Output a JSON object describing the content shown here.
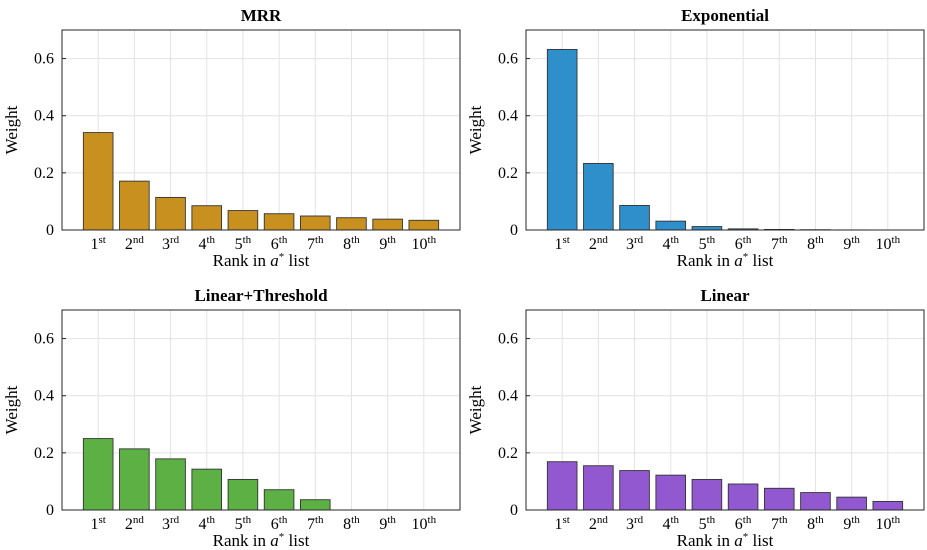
{
  "chart_data": [
    {
      "type": "bar",
      "title": "MRR",
      "ylabel": "Weight",
      "xlabel": "Rank in a* list",
      "ylim": [
        0,
        0.7
      ],
      "yticks": [
        "0",
        "0.2",
        "0.4",
        "0.6"
      ],
      "categories": [
        "1st",
        "2nd",
        "3rd",
        "4th",
        "5th",
        "6th",
        "7th",
        "8th",
        "9th",
        "10th"
      ],
      "values": [
        0.341,
        0.171,
        0.114,
        0.085,
        0.068,
        0.057,
        0.049,
        0.043,
        0.038,
        0.034
      ],
      "color": "#C8901F",
      "grid": true
    },
    {
      "type": "bar",
      "title": "Exponential",
      "ylabel": "Weight",
      "xlabel": "Rank in a* list",
      "ylim": [
        0,
        0.7
      ],
      "yticks": [
        "0",
        "0.2",
        "0.4",
        "0.6"
      ],
      "categories": [
        "1st",
        "2nd",
        "3rd",
        "4th",
        "5th",
        "6th",
        "7th",
        "8th",
        "9th",
        "10th"
      ],
      "values": [
        0.632,
        0.233,
        0.086,
        0.031,
        0.012,
        0.004,
        0.002,
        0.001,
        0.0003,
        0.0001
      ],
      "color": "#2F8FCB",
      "grid": true
    },
    {
      "type": "bar",
      "title": "Linear+Threshold",
      "ylabel": "Weight",
      "xlabel": "Rank in a* list",
      "ylim": [
        0,
        0.7
      ],
      "yticks": [
        "0",
        "0.2",
        "0.4",
        "0.6"
      ],
      "categories": [
        "1st",
        "2nd",
        "3rd",
        "4th",
        "5th",
        "6th",
        "7th",
        "8th",
        "9th",
        "10th"
      ],
      "values": [
        0.25,
        0.214,
        0.179,
        0.143,
        0.107,
        0.071,
        0.036,
        0,
        0,
        0
      ],
      "color": "#5DB044",
      "grid": true
    },
    {
      "type": "bar",
      "title": "Linear",
      "ylabel": "Weight",
      "xlabel": "Rank in a* list",
      "ylim": [
        0,
        0.7
      ],
      "yticks": [
        "0",
        "0.2",
        "0.4",
        "0.6"
      ],
      "categories": [
        "1st",
        "2nd",
        "3rd",
        "4th",
        "5th",
        "6th",
        "7th",
        "8th",
        "9th",
        "10th"
      ],
      "values": [
        0.169,
        0.155,
        0.138,
        0.122,
        0.107,
        0.091,
        0.076,
        0.061,
        0.045,
        0.03
      ],
      "color": "#9158CF",
      "grid": true
    }
  ]
}
